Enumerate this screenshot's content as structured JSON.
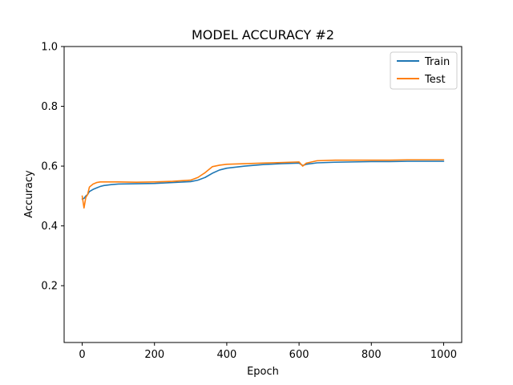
{
  "chart_data": {
    "type": "line",
    "title": "MODEL ACCURACY #2",
    "xlabel": "Epoch",
    "ylabel": "Accuracy",
    "xlim": [
      -50,
      1050
    ],
    "ylim": [
      0.01,
      1.0
    ],
    "xticks": [
      0,
      200,
      400,
      600,
      800,
      1000
    ],
    "yticks": [
      0.2,
      0.4,
      0.6,
      0.8,
      1.0
    ],
    "xtick_labels": [
      "0",
      "200",
      "400",
      "600",
      "800",
      "1000"
    ],
    "ytick_labels": [
      "0.2",
      "0.4",
      "0.6",
      "0.8",
      "1.0"
    ],
    "grid": false,
    "legend_position": "top-right",
    "x": [
      0,
      5,
      10,
      15,
      20,
      30,
      40,
      50,
      60,
      80,
      100,
      150,
      200,
      250,
      300,
      320,
      340,
      360,
      380,
      400,
      450,
      500,
      550,
      600,
      610,
      620,
      650,
      700,
      750,
      800,
      850,
      900,
      950,
      1000
    ],
    "series": [
      {
        "name": "Train",
        "color": "#1f77b4",
        "values": [
          0.49,
          0.492,
          0.5,
          0.505,
          0.515,
          0.522,
          0.527,
          0.532,
          0.535,
          0.538,
          0.54,
          0.541,
          0.542,
          0.545,
          0.548,
          0.553,
          0.562,
          0.576,
          0.587,
          0.593,
          0.6,
          0.605,
          0.608,
          0.61,
          0.602,
          0.606,
          0.611,
          0.613,
          0.614,
          0.615,
          0.615,
          0.616,
          0.616,
          0.616
        ]
      },
      {
        "name": "Test",
        "color": "#ff7f0e",
        "values": [
          0.5,
          0.46,
          0.495,
          0.505,
          0.53,
          0.54,
          0.545,
          0.547,
          0.547,
          0.547,
          0.547,
          0.546,
          0.547,
          0.549,
          0.553,
          0.562,
          0.578,
          0.598,
          0.603,
          0.606,
          0.608,
          0.61,
          0.612,
          0.614,
          0.6,
          0.61,
          0.618,
          0.62,
          0.62,
          0.62,
          0.62,
          0.621,
          0.621,
          0.621
        ]
      }
    ]
  }
}
